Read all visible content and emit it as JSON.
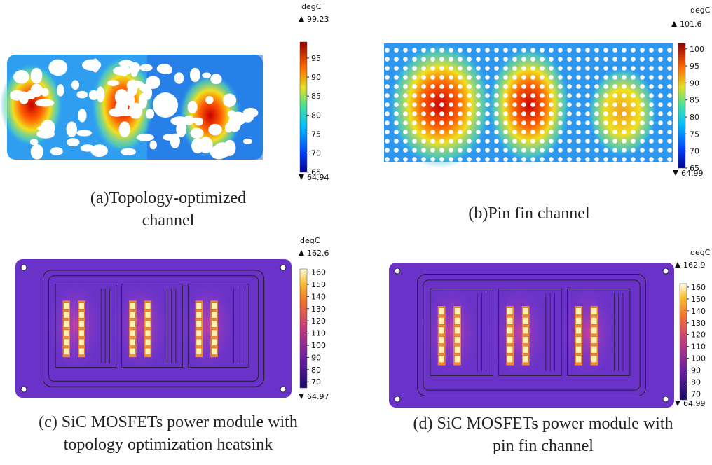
{
  "panels": [
    {
      "caption": [
        "(a)Topology-optimized",
        "channel"
      ],
      "unit": "degC",
      "max": 99.23,
      "min": 64.94,
      "ticks": [
        95,
        90,
        85,
        80,
        75,
        70,
        65
      ]
    },
    {
      "caption": [
        "(b)Pin fin channel"
      ],
      "unit": "degC",
      "max": 101.6,
      "min": 64.99,
      "ticks": [
        100,
        95,
        90,
        85,
        80,
        75,
        70,
        65
      ]
    },
    {
      "caption": [
        "(c) SiC MOSFETs power module with",
        "topology optimization heatsink"
      ],
      "unit": "degC",
      "max": 162.6,
      "min": 64.97,
      "ticks": [
        160,
        150,
        140,
        130,
        120,
        110,
        100,
        90,
        80,
        70
      ]
    },
    {
      "caption": [
        "(d) SiC MOSFETs power module with",
        "pin fin channel"
      ],
      "unit": "degC",
      "max": 162.9,
      "min": 64.99,
      "ticks": [
        160,
        150,
        140,
        130,
        120,
        110,
        100,
        90,
        80,
        70
      ]
    }
  ]
}
